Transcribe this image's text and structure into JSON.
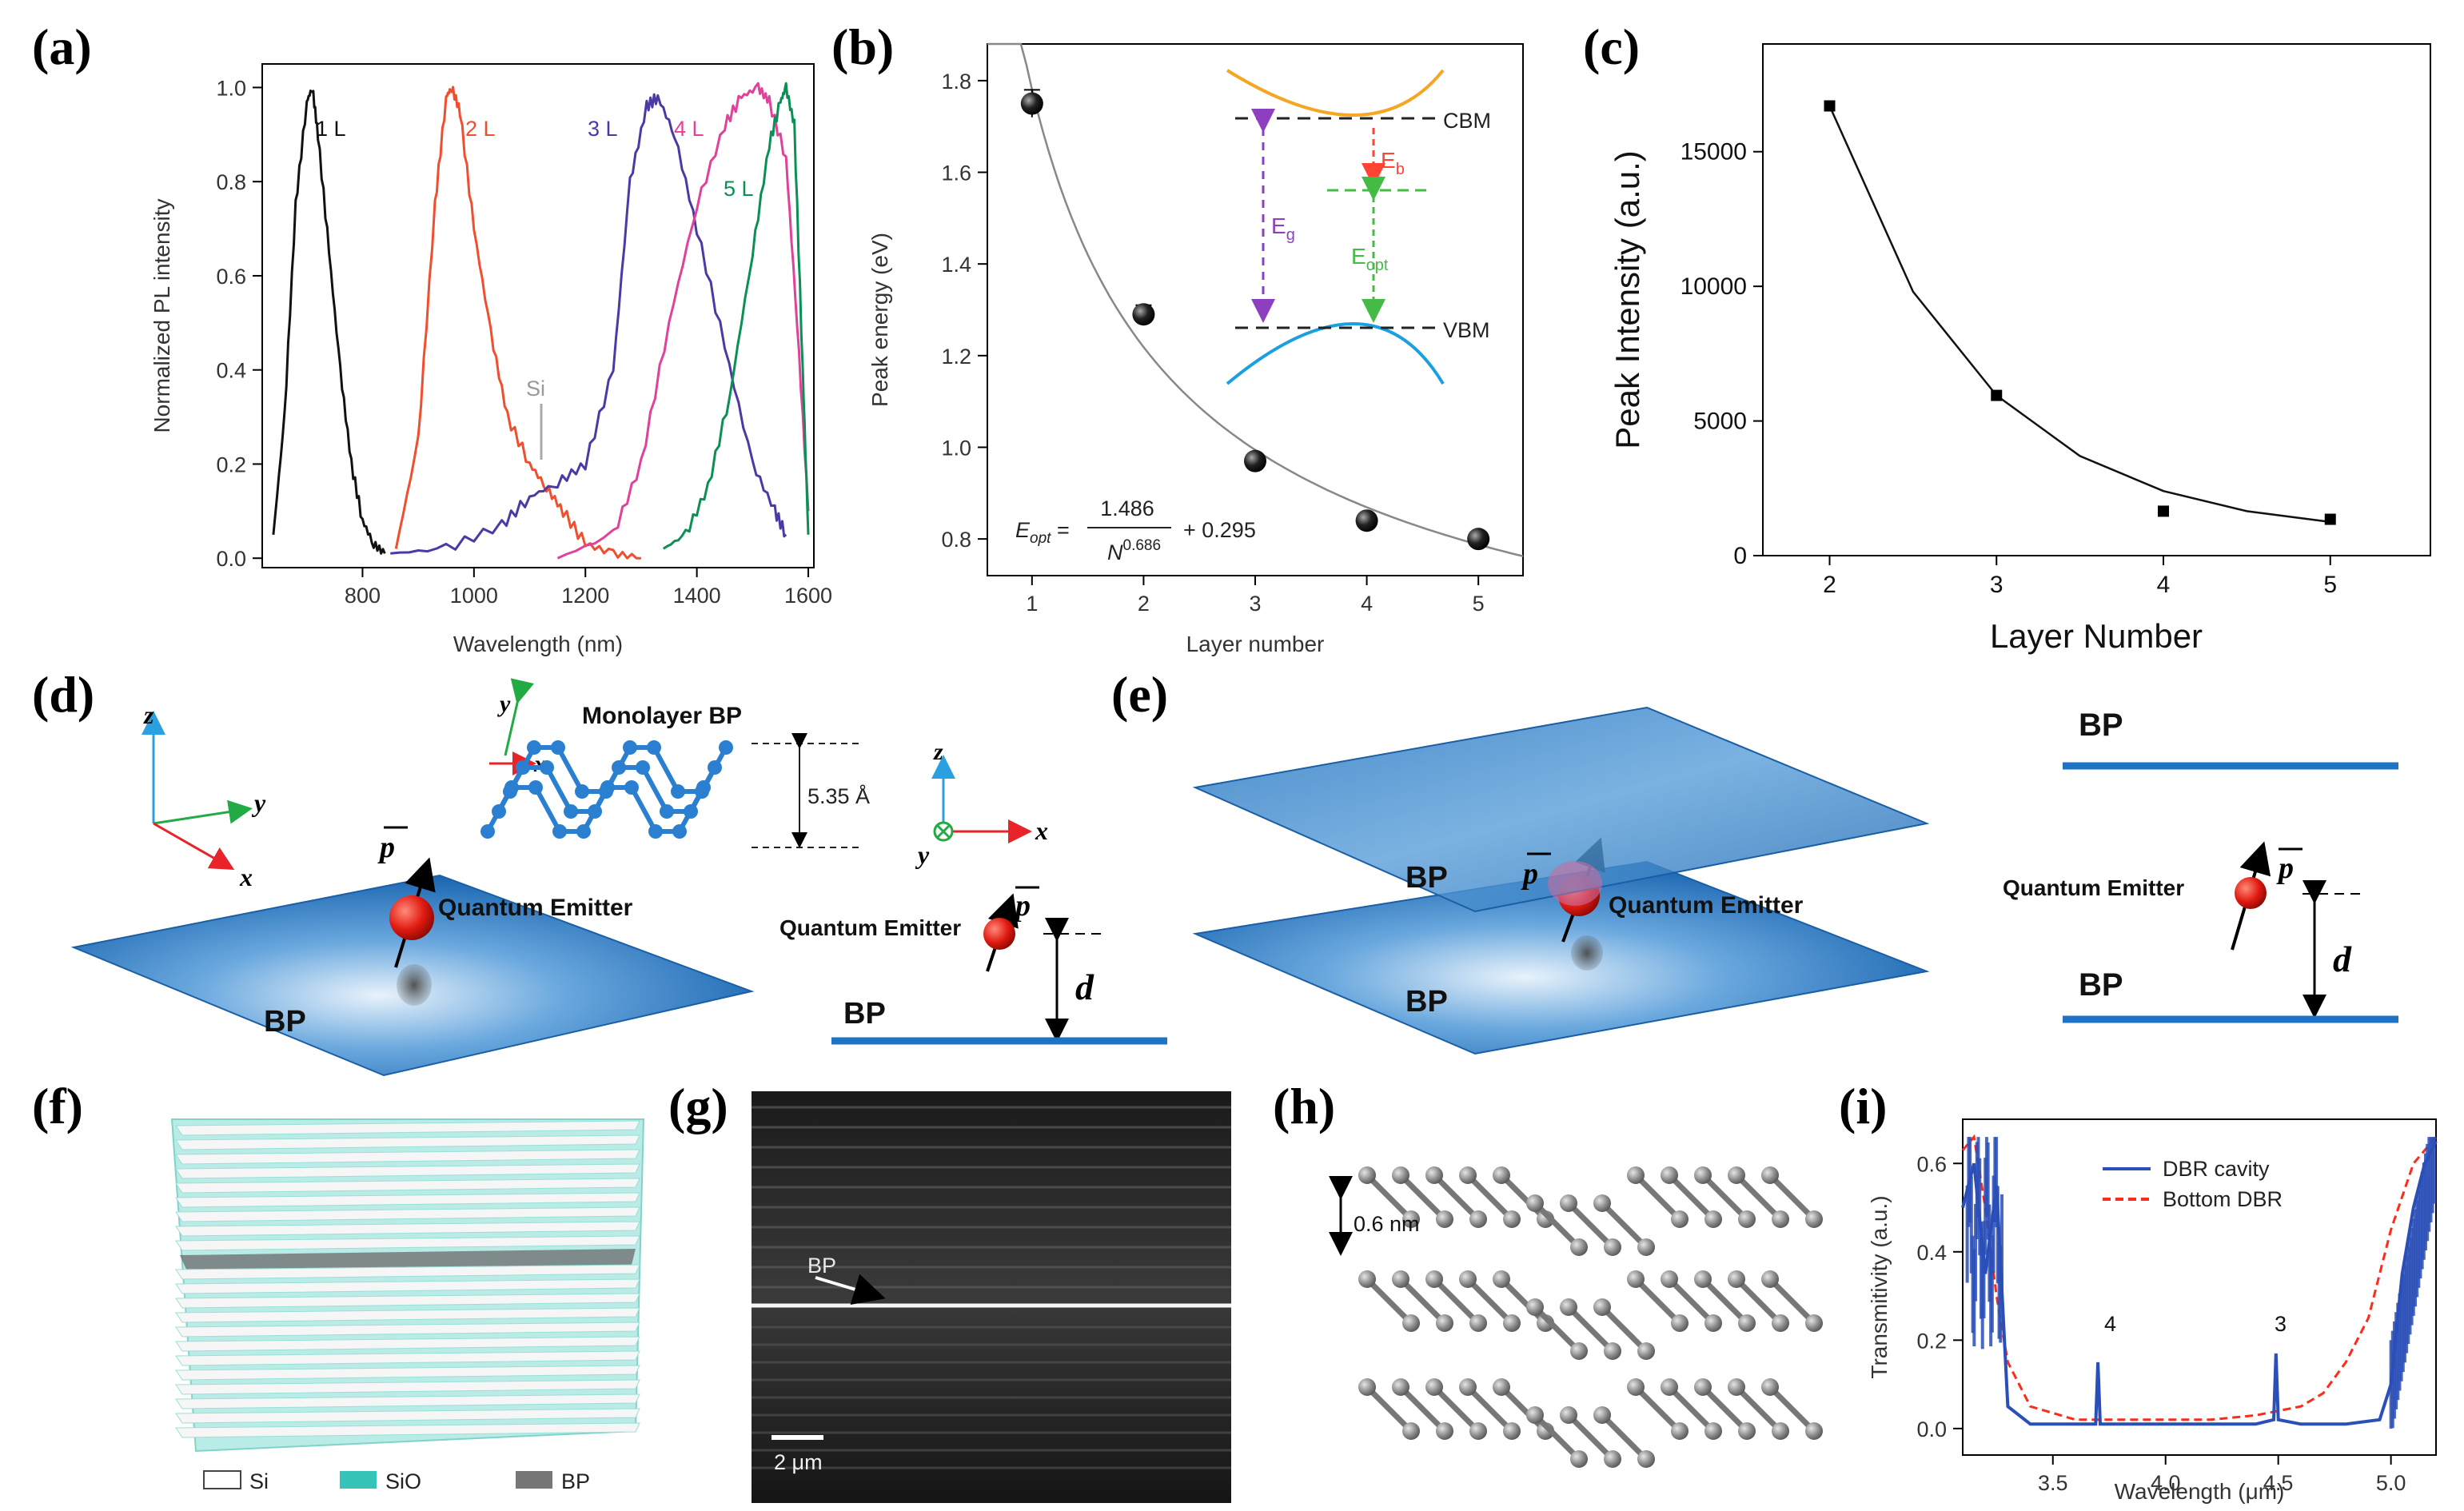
{
  "panel_labels": {
    "a": "(a)",
    "b": "(b)",
    "c": "(c)",
    "d": "(d)",
    "e": "(e)",
    "f": "(f)",
    "g": "(g)",
    "h": "(h)",
    "i": "(i)"
  },
  "colors": {
    "bp_blue": "#1f73c4",
    "sio_teal": "#36c4b9",
    "line_black": "#111111",
    "line_red": "#f04f2f",
    "line_purple": "#4b3aa6",
    "line_magenta": "#e0429a",
    "line_green": "#0c8f55",
    "dbr_blue": "#2b4fb8",
    "dbr_red": "#ff2a1a"
  },
  "panel_a": {
    "xlabel": "Wavelength (nm)",
    "ylabel": "Normalized PL intensity",
    "curve_labels": [
      "1 L",
      "2 L",
      "3 L",
      "4 L",
      "5 L"
    ],
    "si_label": "Si"
  },
  "panel_b": {
    "xlabel": "Layer number",
    "ylabel": "Peak energy (eV)",
    "inset": {
      "cbm": "CBM",
      "vbm": "VBM",
      "eg": "E",
      "eg_sub": "g",
      "eb": "E",
      "eb_sub": "b",
      "eopt": "E",
      "eopt_sub": "opt"
    },
    "formula": {
      "lhs": "E",
      "lhs_sub": "opt",
      "eq": " = ",
      "num": "1.486",
      "den": "N",
      "den_exp": "0.686",
      "add": "+ 0.295"
    }
  },
  "panel_c": {
    "xlabel": "Layer Number",
    "ylabel": "Peak Intensity (a.u.)"
  },
  "panel_d": {
    "structure_title": "Monolayer BP",
    "thickness": "5.35 Å",
    "quantum_emitter": "Quantum Emitter",
    "bp": "BP",
    "p": "p",
    "d": "d",
    "axes": {
      "x": "x",
      "y": "y",
      "z": "z"
    }
  },
  "panel_e": {
    "bp_top": "BP",
    "bp_bottom": "BP",
    "quantum_emitter": "Quantum Emitter",
    "p": "p",
    "d": "d"
  },
  "panel_f": {
    "legend": [
      "Si",
      "SiO",
      "BP"
    ]
  },
  "panel_g": {
    "bp_label": "BP",
    "scale": "2 μm"
  },
  "panel_h": {
    "spacing": "0.6 nm"
  },
  "panel_i": {
    "xlabel": "Wavelength (μm)",
    "ylabel": "Transmitivity (a.u.)",
    "legend": [
      "DBR cavity",
      "Bottom DBR"
    ],
    "peak_labels": [
      "4",
      "3"
    ]
  },
  "chart_data": [
    {
      "id": "a",
      "type": "line",
      "title": "",
      "xlabel": "Wavelength (nm)",
      "ylabel": "Normalized PL intensity",
      "xlim": [
        620,
        1610
      ],
      "ylim": [
        -0.02,
        1.05
      ],
      "xticks": [
        800,
        1000,
        1200,
        1400,
        1600
      ],
      "yticks": [
        0.0,
        0.2,
        0.4,
        0.6,
        0.8,
        1.0
      ],
      "series": [
        {
          "name": "1 L",
          "color": "#111111",
          "x": [
            640,
            660,
            680,
            700,
            710,
            720,
            740,
            760,
            780,
            800,
            820,
            840
          ],
          "y": [
            0.05,
            0.3,
            0.75,
            0.97,
            1.0,
            0.9,
            0.65,
            0.4,
            0.2,
            0.08,
            0.03,
            0.01
          ]
        },
        {
          "name": "2 L",
          "color": "#f04f2f",
          "x": [
            860,
            900,
            930,
            950,
            960,
            975,
            1000,
            1030,
            1060,
            1100,
            1130,
            1160,
            1200,
            1250,
            1300
          ],
          "y": [
            0.02,
            0.25,
            0.75,
            0.98,
            1.0,
            0.95,
            0.7,
            0.48,
            0.3,
            0.2,
            0.15,
            0.1,
            0.03,
            0.01,
            0.0
          ]
        },
        {
          "name": "3 L",
          "color": "#4b3aa6",
          "x": [
            850,
            950,
            1050,
            1100,
            1150,
            1200,
            1250,
            1280,
            1310,
            1330,
            1360,
            1400,
            1450,
            1500,
            1540,
            1560
          ],
          "y": [
            0.01,
            0.02,
            0.07,
            0.13,
            0.16,
            0.2,
            0.4,
            0.8,
            0.96,
            0.98,
            0.9,
            0.7,
            0.45,
            0.2,
            0.1,
            0.05
          ]
        },
        {
          "name": "4 L",
          "color": "#e0429a",
          "x": [
            1150,
            1250,
            1300,
            1350,
            1400,
            1450,
            1480,
            1510,
            1530,
            1560,
            1580,
            1600
          ],
          "y": [
            0.0,
            0.05,
            0.2,
            0.5,
            0.75,
            0.92,
            0.98,
            1.0,
            0.97,
            0.85,
            0.5,
            0.1
          ]
        },
        {
          "name": "5 L",
          "color": "#0c8f55",
          "x": [
            1340,
            1380,
            1420,
            1460,
            1500,
            1530,
            1550,
            1560,
            1575,
            1590,
            1600
          ],
          "y": [
            0.02,
            0.05,
            0.15,
            0.35,
            0.65,
            0.88,
            0.97,
            1.0,
            0.92,
            0.4,
            0.05
          ]
        }
      ],
      "annotations": {
        "Si": [
          1130,
          0.21
        ]
      }
    },
    {
      "id": "b",
      "type": "scatter",
      "title": "",
      "xlabel": "Layer number",
      "ylabel": "Peak energy (eV)",
      "xlim": [
        0.6,
        5.4
      ],
      "ylim": [
        0.72,
        1.88
      ],
      "xticks": [
        1,
        2,
        3,
        4,
        5
      ],
      "yticks": [
        0.8,
        1.0,
        1.2,
        1.4,
        1.6,
        1.8
      ],
      "x": [
        1,
        2,
        3,
        4,
        5
      ],
      "y": [
        1.75,
        1.29,
        0.97,
        0.84,
        0.8
      ],
      "yerr": [
        0.03,
        0.02,
        0.01,
        0.01,
        0.01
      ],
      "fit": {
        "formula": "E_opt = 1.486 / N^0.686 + 0.295",
        "a": 1.486,
        "b": 0.686,
        "c": 0.295
      }
    },
    {
      "id": "c",
      "type": "scatter",
      "title": "",
      "xlabel": "Layer Number",
      "ylabel": "Peak Intensity (a.u.)",
      "xlim": [
        1.6,
        5.6
      ],
      "ylim": [
        0,
        19000
      ],
      "xticks": [
        2,
        3,
        4,
        5
      ],
      "yticks": [
        0,
        5000,
        10000,
        15000
      ],
      "x": [
        2,
        3,
        4,
        5
      ],
      "y": [
        16700,
        5950,
        1650,
        1350
      ],
      "fit": {
        "type": "exponential",
        "x": [
          2,
          2.5,
          3,
          3.5,
          4,
          4.5,
          5
        ],
        "y": [
          16700,
          9800,
          5950,
          3700,
          2400,
          1650,
          1250
        ]
      }
    },
    {
      "id": "i",
      "type": "line",
      "title": "",
      "xlabel": "Wavelength (μm)",
      "ylabel": "Transmitivity (a.u.)",
      "xlim": [
        3.1,
        5.2
      ],
      "ylim": [
        -0.06,
        0.7
      ],
      "xticks": [
        3.5,
        4.0,
        4.5,
        5.0
      ],
      "yticks": [
        0.0,
        0.2,
        0.4,
        0.6
      ],
      "legend": [
        "DBR cavity",
        "Bottom DBR"
      ],
      "series": [
        {
          "name": "DBR cavity",
          "color": "#2b4fb8",
          "x": [
            3.1,
            3.15,
            3.2,
            3.25,
            3.3,
            3.4,
            3.6,
            3.69,
            3.7,
            3.71,
            3.8,
            4.0,
            4.2,
            4.4,
            4.48,
            4.49,
            4.5,
            4.6,
            4.8,
            4.95,
            5.0,
            5.05,
            5.1,
            5.15,
            5.2
          ],
          "y": [
            0.5,
            0.6,
            0.35,
            0.55,
            0.05,
            0.01,
            0.01,
            0.01,
            0.15,
            0.01,
            0.01,
            0.01,
            0.01,
            0.01,
            0.02,
            0.17,
            0.02,
            0.01,
            0.01,
            0.02,
            0.1,
            0.35,
            0.5,
            0.6,
            0.65
          ]
        },
        {
          "name": "Bottom DBR",
          "color": "#ff2a1a",
          "x": [
            3.1,
            3.15,
            3.2,
            3.25,
            3.3,
            3.4,
            3.6,
            3.8,
            4.0,
            4.2,
            4.4,
            4.6,
            4.7,
            4.8,
            4.9,
            5.0,
            5.1,
            5.2
          ],
          "y": [
            0.63,
            0.66,
            0.5,
            0.3,
            0.15,
            0.05,
            0.02,
            0.02,
            0.02,
            0.02,
            0.03,
            0.05,
            0.08,
            0.15,
            0.25,
            0.45,
            0.6,
            0.66
          ]
        }
      ],
      "annotations": {
        "4": [
          3.7,
          0.22
        ],
        "3": [
          4.5,
          0.22
        ]
      }
    }
  ]
}
